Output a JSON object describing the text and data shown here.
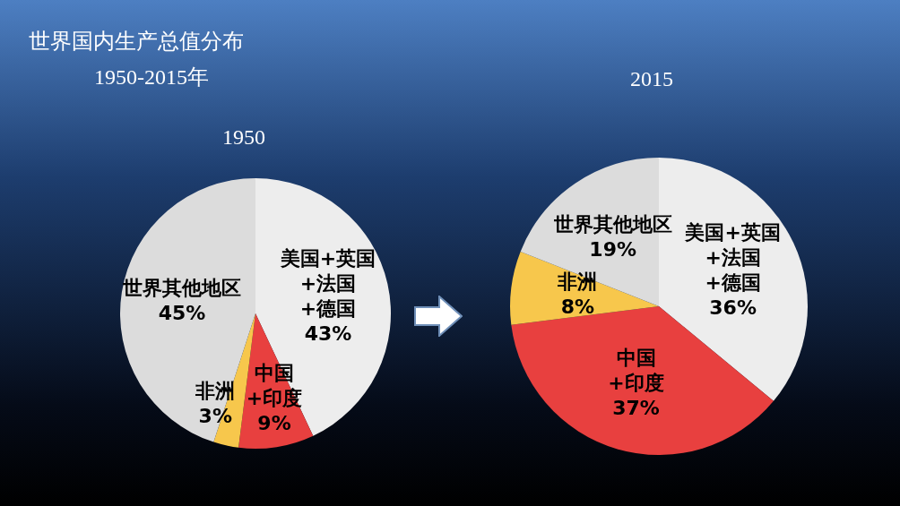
{
  "chart_data": [
    {
      "type": "pie",
      "title": "1950",
      "annotations": [
        "世界国内生产总值分布",
        "1950-2015年"
      ],
      "categories": [
        "美国+英国\n+法国\n+德国",
        "中国\n+印度",
        "非洲",
        "世界其他地区"
      ],
      "values": [
        43,
        9,
        3,
        45
      ],
      "colors": [
        "#ededed",
        "#e8403f",
        "#f7c74c",
        "#dcdcdc"
      ],
      "value_labels": [
        "43%",
        "9%",
        "3%",
        "45%"
      ]
    },
    {
      "type": "pie",
      "title": "2015",
      "categories": [
        "美国+英国\n+法国\n+德国",
        "中国\n+印度",
        "非洲",
        "世界其他地区"
      ],
      "values": [
        36,
        37,
        8,
        19
      ],
      "colors": [
        "#ededed",
        "#e8403f",
        "#f7c74c",
        "#dcdcdc"
      ],
      "value_labels": [
        "36%",
        "37%",
        "8%",
        "19%"
      ]
    }
  ]
}
